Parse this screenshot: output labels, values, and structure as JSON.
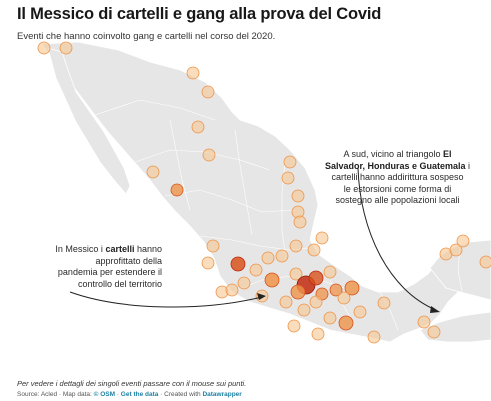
{
  "header": {
    "title": "Il Messico di cartelli e gang alla prova del Covid",
    "subtitle": "Eventi che hanno coinvolto gang e cartelli nel corso del 2020."
  },
  "annotations": {
    "left": {
      "line1_pre": "In Messico i ",
      "line1_bold": "cartelli",
      "line1_post": " hanno",
      "line2": "approfittato della",
      "line3": "pandemia per estendere il",
      "line4": "controllo del territorio"
    },
    "right": {
      "line1_pre": "A sud, vicino al triangolo ",
      "line1_bold": "El",
      "line2_bold": "Salvador, Honduras e Guatemala",
      "line2_post": " i",
      "line3": "cartelli hanno addirittura sospeso",
      "line4": "le estorsioni come forma di",
      "line5": "sostegno alle popolazioni locali"
    }
  },
  "footer": {
    "note": "Per vedere i dettagli dei singoli eventi passare con il mouse sui punti.",
    "source_prefix": "Source: Acled · Map data: ",
    "osm_link": "© OSM",
    "get_data_sep": " · ",
    "get_data_link": "Get the data",
    "created_prefix": " · Created with ",
    "datawrapper_link": "Datawrapper"
  },
  "colors": {
    "land": "#e6e6e6",
    "water": "#ffffff",
    "border": "#ffffff",
    "dot_light": "#f5c690",
    "dot_mid": "#ee9348",
    "dot_dark": "#d8521c",
    "dot_darkest": "#c12a10"
  },
  "event_intensity_levels": [
    "light",
    "mid",
    "dark",
    "darkest"
  ]
}
